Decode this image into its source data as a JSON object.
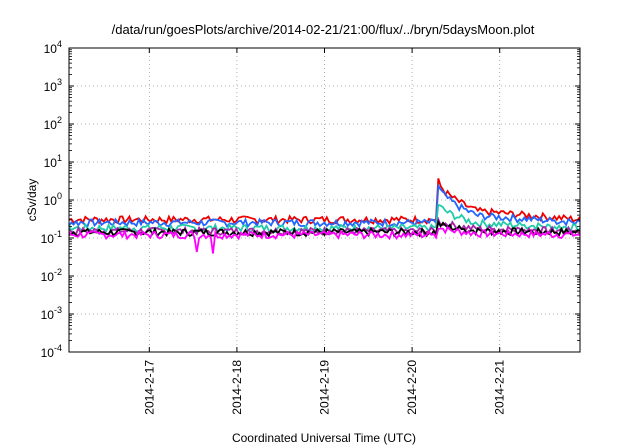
{
  "chart_data": {
    "type": "line",
    "title": "/data/run/goesPlots/archive/2014-02-21/21:00/flux/../bryn/5daysMoon.plot",
    "xlabel": "Coordinated Universal Time (UTC)",
    "ylabel": "cSv/day",
    "yscale": "log",
    "ylim": [
      0.0001,
      10000
    ],
    "y_ticks": [
      {
        "base": "10",
        "exp": "-4",
        "value": 0.0001
      },
      {
        "base": "10",
        "exp": "-3",
        "value": 0.001
      },
      {
        "base": "10",
        "exp": "-2",
        "value": 0.01
      },
      {
        "base": "10",
        "exp": "-1",
        "value": 0.1
      },
      {
        "base": "10",
        "exp": "0",
        "value": 1
      },
      {
        "base": "10",
        "exp": "1",
        "value": 10
      },
      {
        "base": "10",
        "exp": "2",
        "value": 100
      },
      {
        "base": "10",
        "exp": "3",
        "value": 1000
      },
      {
        "base": "10",
        "exp": "4",
        "value": 10000
      }
    ],
    "xlim": [
      "2014-02-16 02:00",
      "2014-02-21 22:00"
    ],
    "x_ticks": [
      {
        "label": "2014-2-17",
        "value": "2014-02-17 00:00"
      },
      {
        "label": "2014-2-18",
        "value": "2014-02-18 00:00"
      },
      {
        "label": "2014-2-19",
        "value": "2014-02-19 00:00"
      },
      {
        "label": "2014-2-20",
        "value": "2014-02-20 00:00"
      },
      {
        "label": "2014-2-21",
        "value": "2014-02-21 00:00"
      }
    ],
    "grid": true,
    "event": {
      "onset": "2014-02-20 07:00",
      "decay_end": "2014-02-20 18:00"
    },
    "series": [
      {
        "color": "#ee0000",
        "baseline": 0.3,
        "peak": 4.0,
        "settle": 0.5
      },
      {
        "color": "#2266ff",
        "baseline": 0.25,
        "peak": 3.0,
        "settle": 0.38
      },
      {
        "color": "#22ccaa",
        "baseline": 0.18,
        "peak": 0.9,
        "settle": 0.24
      },
      {
        "color": "#aa22aa",
        "baseline": 0.15,
        "peak": 0.3,
        "settle": 0.17
      },
      {
        "color": "#000000",
        "baseline": 0.14,
        "peak": 0.25,
        "settle": 0.15
      },
      {
        "color": "#ff00ff",
        "baseline": 0.12,
        "peak": 0.2,
        "settle": 0.13
      }
    ]
  }
}
